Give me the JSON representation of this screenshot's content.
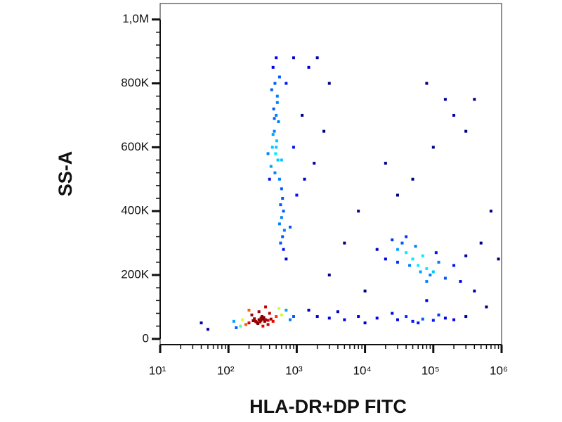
{
  "chart_data": {
    "type": "scatter",
    "x_label": "HLA-DR+DP FITC",
    "y_label": "SS-A",
    "xscale": "log",
    "xlim": [
      10,
      1000000
    ],
    "ylim": [
      -18000,
      1050000
    ],
    "xticks": [
      {
        "value": 10,
        "label": "10¹"
      },
      {
        "value": 100,
        "label": "10²"
      },
      {
        "value": 1000,
        "label": "10³"
      },
      {
        "value": 10000,
        "label": "10⁴"
      },
      {
        "value": 100000,
        "label": "10⁵"
      },
      {
        "value": 1000000,
        "label": "10⁶"
      }
    ],
    "yticks": [
      0,
      {
        "value": 200000,
        "label": "200K"
      },
      {
        "value": 400000,
        "label": "400K"
      },
      {
        "value": 600000,
        "label": "600K"
      },
      {
        "value": 800000,
        "label": "800K"
      },
      {
        "value": 1000000,
        "label": "1,0M"
      }
    ],
    "x": [
      200,
      250,
      280,
      300,
      320,
      260,
      340,
      300,
      270,
      310,
      350,
      230,
      290,
      330,
      380,
      240,
      420,
      180,
      150,
      500,
      450,
      400,
      220,
      160,
      130,
      600,
      700,
      550,
      200,
      350,
      120,
      800,
      900,
      280,
      320,
      380,
      450,
      500,
      480,
      520,
      460,
      500,
      540,
      470,
      510,
      440,
      490,
      530,
      420,
      480,
      560,
      600,
      620,
      580,
      640,
      600,
      560,
      660,
      620,
      580,
      640,
      700,
      450,
      520,
      560,
      430,
      400,
      380,
      900,
      1200,
      1500,
      2000,
      1000,
      1300,
      2500,
      800,
      700,
      900,
      3000,
      1800,
      600,
      500,
      470,
      20000,
      30000,
      40000,
      50000,
      60000,
      80000,
      100000,
      120000,
      35000,
      45000,
      25000,
      70000,
      90000,
      150000,
      200000,
      15000,
      55000,
      65000,
      40000,
      30000,
      110000,
      250000,
      300000,
      400000,
      80000,
      2000,
      3000,
      5000,
      8000,
      15000,
      30000,
      50000,
      70000,
      100000,
      150000,
      40000,
      60000,
      25000,
      200000,
      1500,
      4000,
      10000,
      120000,
      300000,
      80000,
      300000,
      150000,
      20000,
      8000,
      50000,
      200000,
      500000,
      700000,
      5000,
      3000,
      50,
      40,
      10000,
      80000,
      600000,
      900000,
      30000,
      400000,
      100000
    ],
    "values": [
      50000,
      55000,
      60000,
      58000,
      62000,
      52000,
      55000,
      65000,
      48000,
      70000,
      60000,
      57000,
      53000,
      67000,
      58000,
      63000,
      62000,
      45000,
      40000,
      70000,
      55000,
      80000,
      75000,
      60000,
      35000,
      75000,
      90000,
      95000,
      90000,
      100000,
      55000,
      60000,
      70000,
      85000,
      40000,
      45000,
      850000,
      880000,
      800000,
      760000,
      720000,
      700000,
      680000,
      650000,
      620000,
      600000,
      580000,
      560000,
      540000,
      520000,
      500000,
      470000,
      440000,
      420000,
      400000,
      380000,
      360000,
      340000,
      320000,
      300000,
      280000,
      250000,
      640000,
      740000,
      820000,
      780000,
      500000,
      580000,
      600000,
      700000,
      850000,
      880000,
      450000,
      500000,
      650000,
      350000,
      800000,
      880000,
      800000,
      550000,
      560000,
      600000,
      690000,
      250000,
      280000,
      270000,
      250000,
      230000,
      220000,
      210000,
      240000,
      300000,
      230000,
      310000,
      260000,
      200000,
      190000,
      230000,
      280000,
      290000,
      210000,
      320000,
      240000,
      270000,
      180000,
      260000,
      150000,
      180000,
      70000,
      65000,
      60000,
      70000,
      65000,
      60000,
      55000,
      62000,
      58000,
      65000,
      70000,
      50000,
      80000,
      60000,
      90000,
      85000,
      50000,
      75000,
      70000,
      800000,
      650000,
      750000,
      550000,
      400000,
      500000,
      700000,
      300000,
      400000,
      300000,
      200000,
      30000,
      50000,
      150000,
      120000,
      100000,
      250000,
      450000,
      750000,
      600000
    ]
  }
}
